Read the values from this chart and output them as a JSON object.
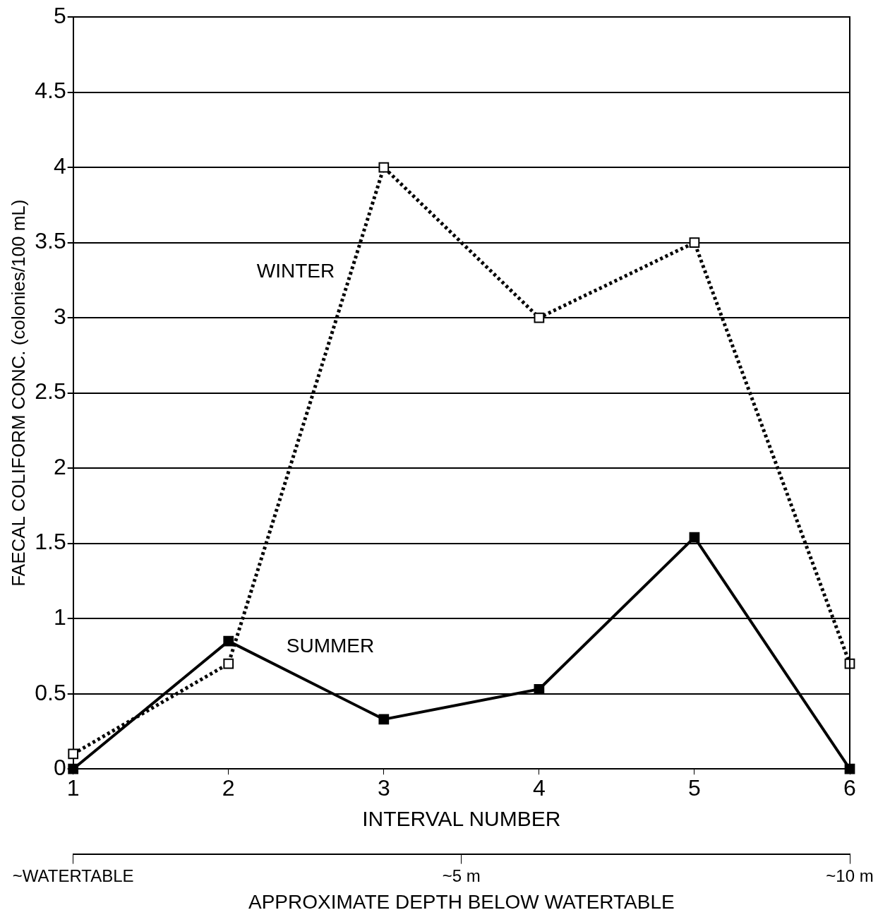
{
  "chart_data": {
    "type": "line",
    "xlabel": "INTERVAL NUMBER",
    "ylabel": "FAECAL COLIFORM CONC. (colonies/100 mL)",
    "x2label": "APPROXIMATE DEPTH BELOW WATERTABLE",
    "x": [
      1,
      2,
      3,
      4,
      5,
      6
    ],
    "xlim": [
      1,
      6
    ],
    "xticks": [
      1,
      2,
      3,
      4,
      5,
      6
    ],
    "x2lim": [
      0,
      10
    ],
    "x2ticks": [
      {
        "value": 0,
        "label": "~WATERTABLE"
      },
      {
        "value": 5,
        "label": "~5 m"
      },
      {
        "value": 10,
        "label": "~10 m"
      }
    ],
    "ylim": [
      0,
      5
    ],
    "yticks": [
      0,
      0.5,
      1,
      1.5,
      2,
      2.5,
      3,
      3.5,
      4,
      4.5,
      5
    ],
    "series": [
      {
        "name": "WINTER",
        "color": "#000000",
        "line_style": "dotted",
        "values": [
          0.1,
          0.7,
          4.0,
          3.0,
          3.5,
          0.7
        ]
      },
      {
        "name": "SUMMER",
        "color": "#000000",
        "line_style": "solid",
        "values": [
          0,
          0.85,
          0.33,
          0.53,
          1.54,
          0
        ]
      }
    ],
    "marker": "square",
    "grid": "y",
    "legend": false
  }
}
